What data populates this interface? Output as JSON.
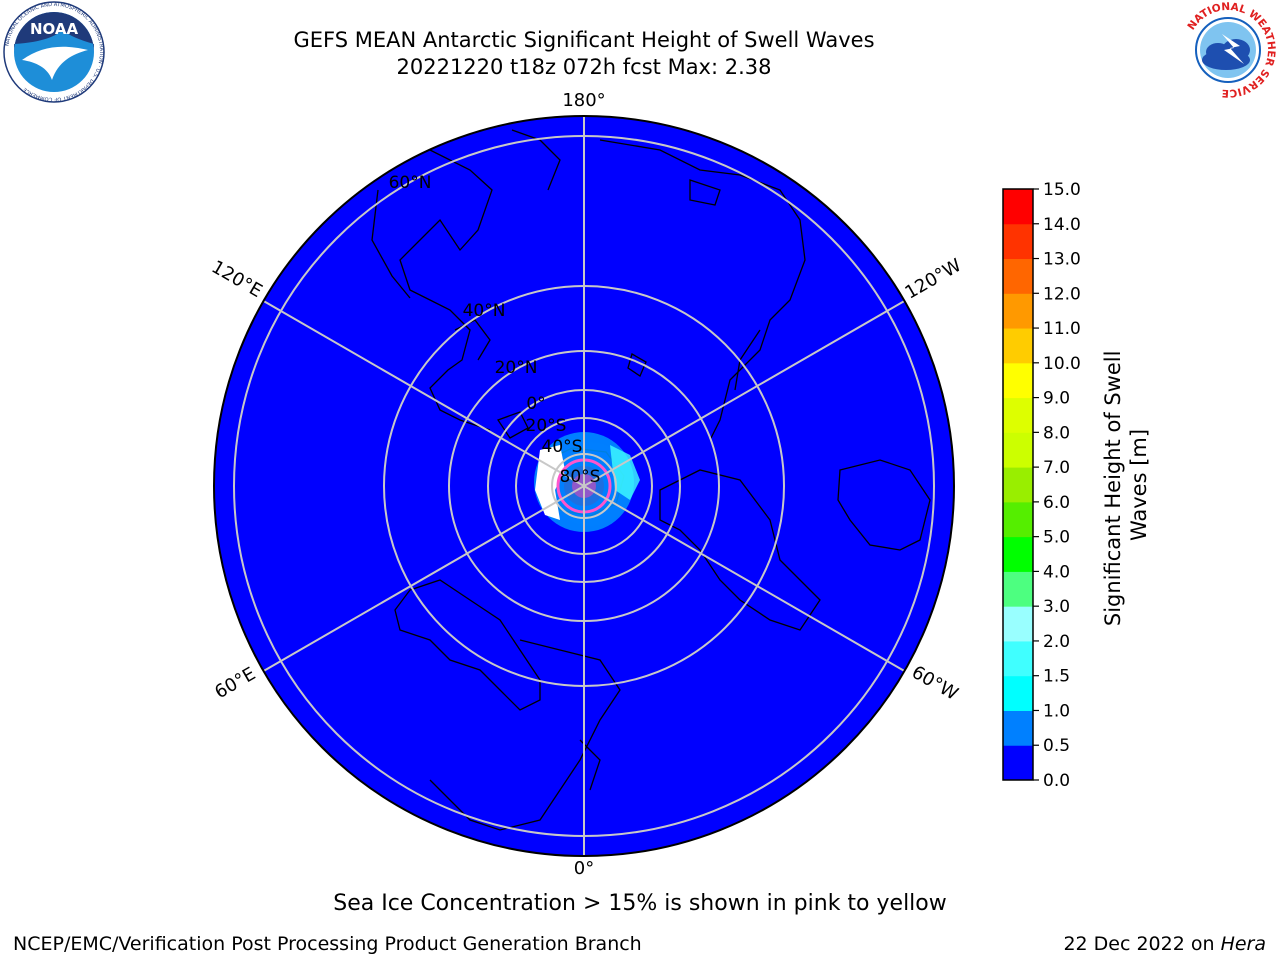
{
  "title": {
    "line1": "GEFS MEAN Antarctic Significant Height of Swell Waves",
    "line2": "20221220 t18z 072h fcst   Max: 2.38"
  },
  "logos": {
    "left": {
      "text": "NOAA",
      "ring_text": "NATIONAL OCEANIC AND ATMOSPHERIC ADMINISTRATION · U.S. DEPARTMENT OF COMMERCE",
      "colors": {
        "navy": "#1f3a7a",
        "blue": "#1e8ed8"
      }
    },
    "right": {
      "ring_text": "NATIONAL WEATHER SERVICE",
      "colors": {
        "red": "#e02020",
        "blue": "#1560bd",
        "cloud": "#1e4fb0"
      }
    }
  },
  "map": {
    "projection": "south polar stereographic",
    "ocean_color": "#0000ff",
    "grid_color": "#c8c8c8",
    "lon_labels": [
      "180°",
      "120°W",
      "60°W",
      "0°",
      "60°E",
      "120°E"
    ],
    "lat_labels": [
      "60°N",
      "40°N",
      "20°N",
      "0°",
      "20°S",
      "40°S",
      "80°S"
    ]
  },
  "colorbar": {
    "label": "Significant Height of Swell\nWaves [m]",
    "ticks": [
      "0.0",
      "0.5",
      "1.0",
      "1.5",
      "2.0",
      "3.0",
      "4.0",
      "5.0",
      "6.0",
      "7.0",
      "8.0",
      "9.0",
      "10.0",
      "11.0",
      "12.0",
      "13.0",
      "14.0",
      "15.0"
    ],
    "colors": [
      "#0000ff",
      "#0080ff",
      "#00ffff",
      "#40ffff",
      "#99ffff",
      "#4dff80",
      "#00ff00",
      "#55ee00",
      "#99ee00",
      "#ccff00",
      "#ddff00",
      "#ffff00",
      "#ffcc00",
      "#ff9900",
      "#ff6600",
      "#ff3300",
      "#ff0000"
    ]
  },
  "note": "Sea Ice Concentration > 15% is shown in pink to yellow",
  "footer": {
    "left": "NCEP/EMC/Verification Post Processing Product Generation Branch",
    "right_date": "22 Dec 2022 on ",
    "right_host": "Hera"
  }
}
